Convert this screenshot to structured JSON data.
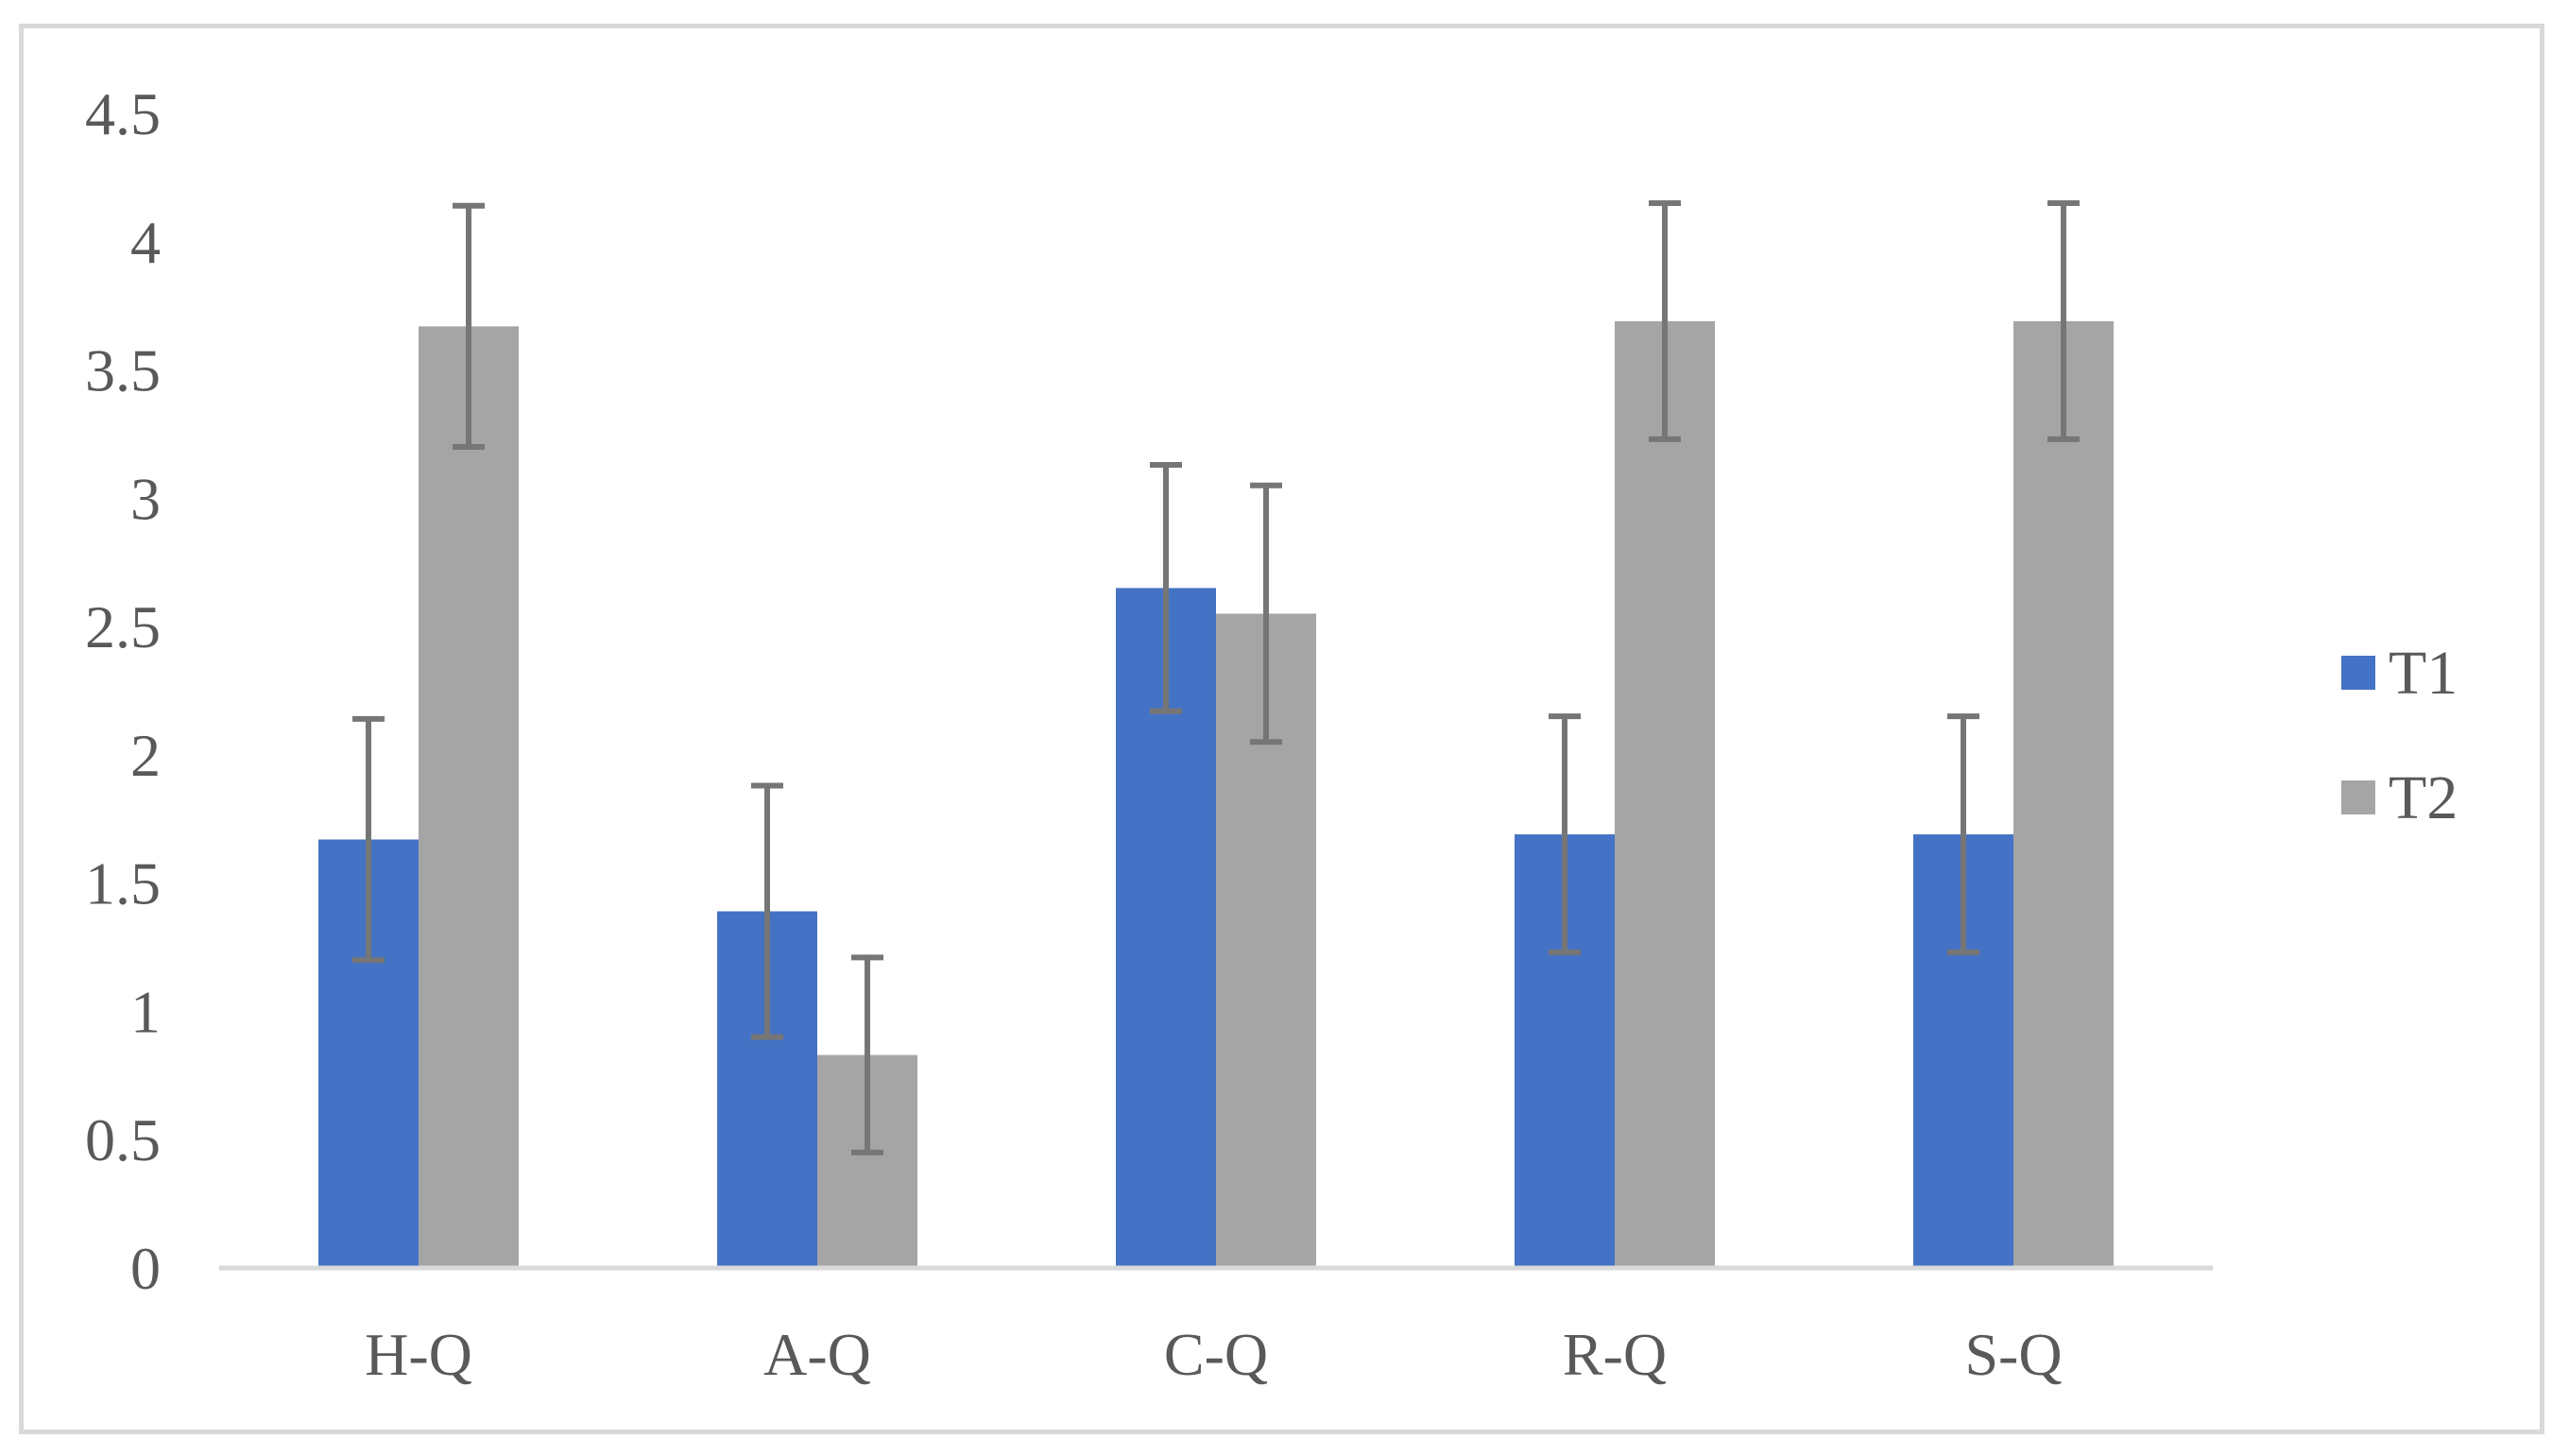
{
  "colors": {
    "T1": "#4472c4",
    "T2": "#a5a5a5",
    "axis": "#d9d9d9",
    "errorbar": "#767676",
    "text": "#595959"
  },
  "chart_data": {
    "type": "bar",
    "title": "",
    "xlabel": "",
    "ylabel": "",
    "ylim": [
      0,
      4.5
    ],
    "yticks": [
      "0",
      "0.5",
      "1",
      "1.5",
      "2",
      "2.5",
      "3",
      "3.5",
      "4",
      "4.5"
    ],
    "categories": [
      "H-Q",
      "A-Q",
      "C-Q",
      "R-Q",
      "S-Q"
    ],
    "series": [
      {
        "name": "T1",
        "values": [
          1.67,
          1.39,
          2.65,
          1.69,
          1.69
        ],
        "error": [
          0.47,
          0.49,
          0.48,
          0.46,
          0.46
        ]
      },
      {
        "name": "T2",
        "values": [
          3.67,
          0.83,
          2.55,
          3.69,
          3.69
        ],
        "error": [
          0.47,
          0.38,
          0.5,
          0.46,
          0.46
        ]
      }
    ],
    "legend": {
      "position": "right",
      "entries": [
        "T1",
        "T2"
      ]
    },
    "grid": false
  }
}
